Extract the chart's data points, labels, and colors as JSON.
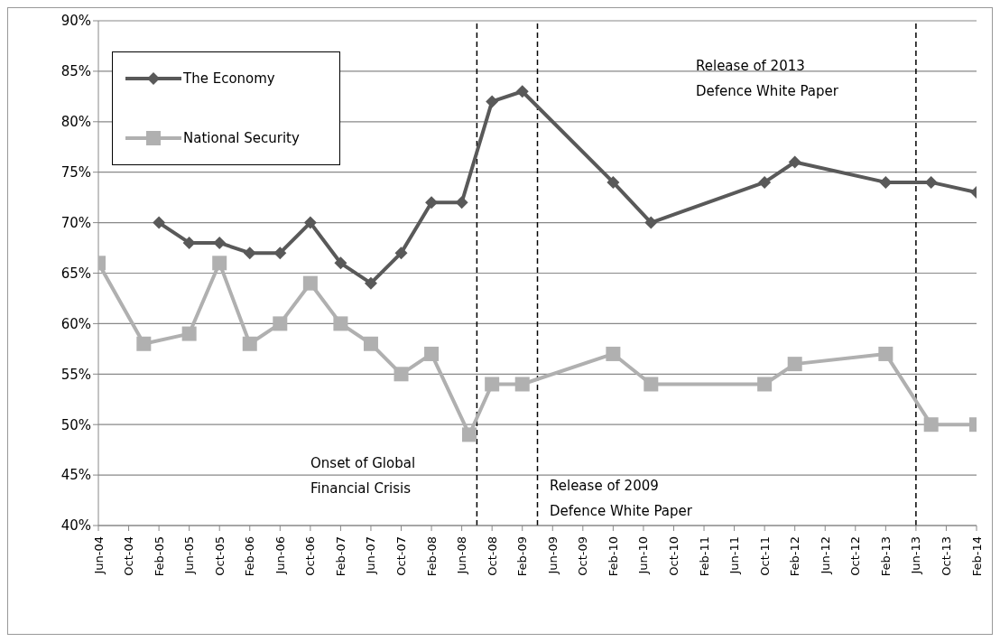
{
  "chart_data": {
    "type": "line",
    "xlim": [
      "2004-06",
      "2014-02"
    ],
    "xticks": [
      {
        "value": "2004-06",
        "label": "Jun-04"
      },
      {
        "value": "2004-10",
        "label": "Oct-04"
      },
      {
        "value": "2005-02",
        "label": "Feb-05"
      },
      {
        "value": "2005-06",
        "label": "Jun-05"
      },
      {
        "value": "2005-10",
        "label": "Oct-05"
      },
      {
        "value": "2006-02",
        "label": "Feb-06"
      },
      {
        "value": "2006-06",
        "label": "Jun-06"
      },
      {
        "value": "2006-10",
        "label": "Oct-06"
      },
      {
        "value": "2007-02",
        "label": "Feb-07"
      },
      {
        "value": "2007-06",
        "label": "Jun-07"
      },
      {
        "value": "2007-10",
        "label": "Oct-07"
      },
      {
        "value": "2008-02",
        "label": "Feb-08"
      },
      {
        "value": "2008-06",
        "label": "Jun-08"
      },
      {
        "value": "2008-10",
        "label": "Oct-08"
      },
      {
        "value": "2009-02",
        "label": "Feb-09"
      },
      {
        "value": "2009-06",
        "label": "Jun-09"
      },
      {
        "value": "2009-10",
        "label": "Oct-09"
      },
      {
        "value": "2010-02",
        "label": "Feb-10"
      },
      {
        "value": "2010-06",
        "label": "Jun-10"
      },
      {
        "value": "2010-10",
        "label": "Oct-10"
      },
      {
        "value": "2011-02",
        "label": "Feb-11"
      },
      {
        "value": "2011-06",
        "label": "Jun-11"
      },
      {
        "value": "2011-10",
        "label": "Oct-11"
      },
      {
        "value": "2012-02",
        "label": "Feb-12"
      },
      {
        "value": "2012-06",
        "label": "Jun-12"
      },
      {
        "value": "2012-10",
        "label": "Oct-12"
      },
      {
        "value": "2013-02",
        "label": "Feb-13"
      },
      {
        "value": "2013-06",
        "label": "Jun-13"
      },
      {
        "value": "2013-10",
        "label": "Oct-13"
      },
      {
        "value": "2014-02",
        "label": "Feb-14"
      }
    ],
    "ylim": [
      40,
      90
    ],
    "yticks": [
      {
        "value": 40,
        "label": "40%"
      },
      {
        "value": 45,
        "label": "45%"
      },
      {
        "value": 50,
        "label": "50%"
      },
      {
        "value": 55,
        "label": "55%"
      },
      {
        "value": 60,
        "label": "60%"
      },
      {
        "value": 65,
        "label": "65%"
      },
      {
        "value": 70,
        "label": "70%"
      },
      {
        "value": 75,
        "label": "75%"
      },
      {
        "value": 80,
        "label": "80%"
      },
      {
        "value": 85,
        "label": "85%"
      },
      {
        "value": 90,
        "label": "90%"
      }
    ],
    "grid": "y",
    "legend": "top left",
    "line_style": "solid",
    "series": [
      {
        "name": "The Economy",
        "color": "#595959",
        "marker": "diamond",
        "x": [
          "2005-02",
          "2005-06",
          "2005-10",
          "2006-02",
          "2006-06",
          "2006-10",
          "2007-02",
          "2007-06",
          "2007-10",
          "2008-02",
          "2008-06",
          "2008-10",
          "2009-02",
          "2010-02",
          "2010-07",
          "2011-10",
          "2012-02",
          "2013-02",
          "2013-08",
          "2014-02"
        ],
        "values": [
          70,
          68,
          68,
          67,
          67,
          70,
          66,
          64,
          67,
          72,
          72,
          82,
          83,
          74,
          70,
          74,
          76,
          74,
          74,
          73
        ]
      },
      {
        "name": "National Security",
        "color": "#b0b0b0",
        "marker": "square",
        "x": [
          "2004-06",
          "2004-12",
          "2005-06",
          "2005-10",
          "2006-02",
          "2006-06",
          "2006-10",
          "2007-02",
          "2007-06",
          "2007-10",
          "2008-02",
          "2008-07",
          "2008-10",
          "2009-02",
          "2010-02",
          "2010-07",
          "2011-10",
          "2012-02",
          "2013-02",
          "2013-08",
          "2014-02"
        ],
        "values": [
          66,
          58,
          59,
          66,
          58,
          60,
          64,
          60,
          58,
          55,
          57,
          49,
          54,
          54,
          57,
          54,
          54,
          56,
          57,
          50,
          50
        ]
      }
    ],
    "ref_lines": [
      {
        "axis": "x",
        "value": "2008-08",
        "color": "#000000",
        "line_style": "dashed"
      },
      {
        "axis": "x",
        "value": "2009-04",
        "color": "#000000",
        "line_style": "dashed"
      },
      {
        "axis": "x",
        "value": "2013-06",
        "color": "#000000",
        "line_style": "dashed"
      }
    ],
    "annotations": [
      "Onset of  Global Financial Crisis",
      "Release of 2009 Defence White Paper",
      "Release of 2013 Defence White Paper"
    ]
  }
}
